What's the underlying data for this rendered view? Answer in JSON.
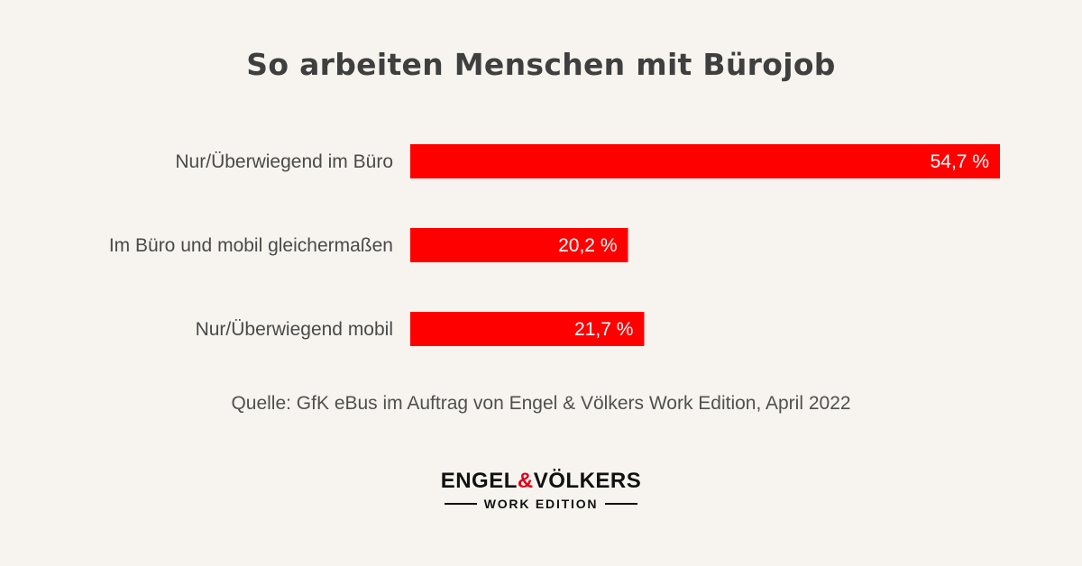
{
  "chart_data": {
    "type": "bar",
    "orientation": "horizontal",
    "title": "So arbeiten Menschen mit Bürojob",
    "categories": [
      "Nur/Überwiegend im Büro",
      "Im Büro und mobil gleichermaßen",
      "Nur/Überwiegend mobil"
    ],
    "values": [
      54.7,
      20.2,
      21.7
    ],
    "value_labels": [
      "54,7 %",
      "20,2 %",
      "21,7 %"
    ],
    "xlabel": "",
    "ylabel": "",
    "xlim": [
      0,
      54.7
    ],
    "grid": false,
    "bar_color": "#ff0000"
  },
  "source": "Quelle: GfK eBus im Auftrag von Engel & Völkers Work Edition, April 2022",
  "logo": {
    "main_left": "ENGEL",
    "main_amp": "&",
    "main_right": "VÖLKERS",
    "sub": "WORK EDITION"
  }
}
